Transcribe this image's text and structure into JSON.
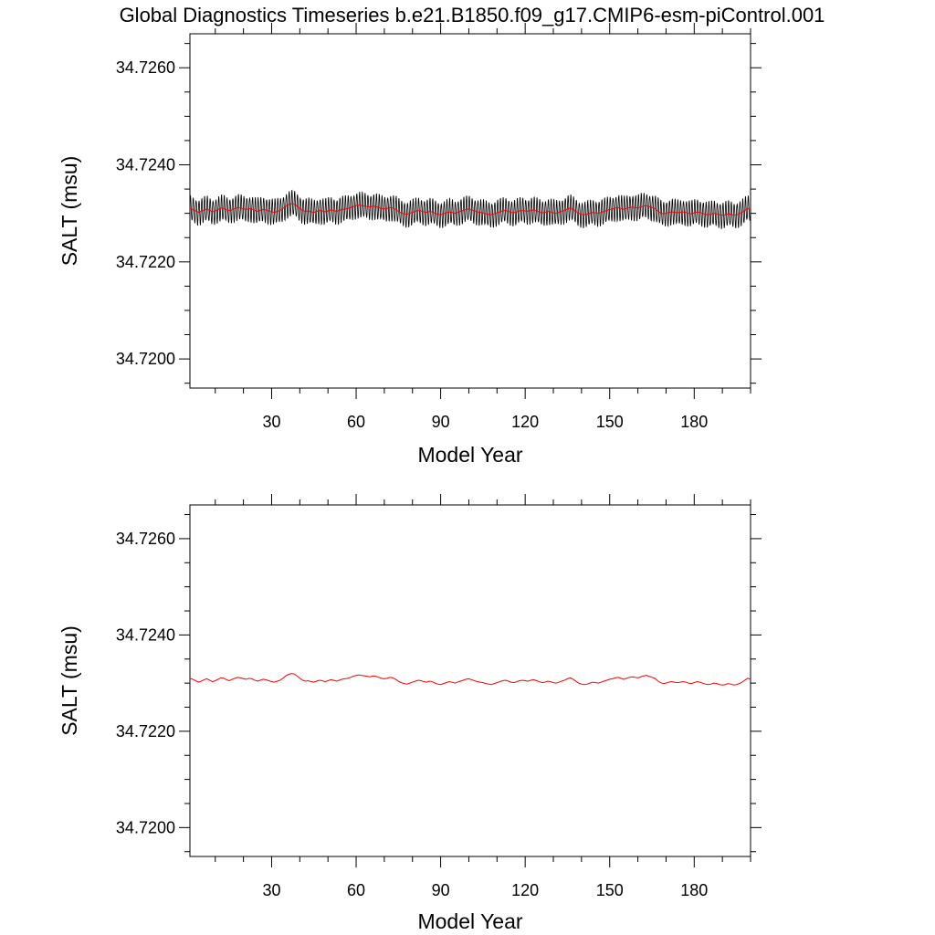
{
  "title": "Global Diagnostics Timeseries b.e21.B1850.f09_g17.CMIP6-esm-piControl.001",
  "colors": {
    "monthly_line": "#000000",
    "annual_line": "#ff0000",
    "frame": "#000000",
    "background": "#ffffff"
  },
  "chart_data": [
    {
      "type": "line",
      "title": "",
      "xlabel": "Model Year",
      "ylabel": "SALT (msu)",
      "xlim": [
        1,
        200
      ],
      "ylim": [
        34.7194,
        34.7267
      ],
      "x_ticks": [
        30,
        60,
        90,
        120,
        150,
        180
      ],
      "x_tick_labels": [
        "30",
        "60",
        "90",
        "120",
        "150",
        "180"
      ],
      "y_ticks": [
        34.72,
        34.722,
        34.724,
        34.726
      ],
      "y_tick_labels": [
        "34.7200",
        "34.7220",
        "34.7240",
        "34.7260"
      ],
      "grid": false,
      "series": [
        {
          "kind": "monthly",
          "color": "#000000",
          "note_values": "monthly values oscillate about the annual mean with a seasonal amplitude of about 0.00025 msu",
          "seasonal_amplitude": 0.00025
        },
        {
          "kind": "annual",
          "color": "#ff0000",
          "x_start": 1,
          "x_step": 1,
          "values": [
            34.7231,
            34.72308,
            34.72305,
            34.72302,
            34.72304,
            34.72307,
            34.72309,
            34.72306,
            34.72303,
            34.72305,
            34.72308,
            34.72311,
            34.7231,
            34.72307,
            34.72305,
            34.72308,
            34.7231,
            34.72312,
            34.72311,
            34.72309,
            34.72308,
            34.7231,
            34.72309,
            34.72306,
            34.72304,
            34.72306,
            34.72308,
            34.72307,
            34.72305,
            34.72303,
            34.72302,
            34.72304,
            34.72306,
            34.7231,
            34.72315,
            34.72318,
            34.7232,
            34.72319,
            34.72315,
            34.7231,
            34.72306,
            34.72304,
            34.72305,
            34.72303,
            34.72302,
            34.72304,
            34.72306,
            34.72305,
            34.72303,
            34.72305,
            34.72307,
            34.72306,
            34.72304,
            34.72306,
            34.72308,
            34.72309,
            34.7231,
            34.72312,
            34.72314,
            34.72316,
            34.72317,
            34.72316,
            34.72315,
            34.72314,
            34.72313,
            34.72315,
            34.72314,
            34.72312,
            34.7231,
            34.72309,
            34.7231,
            34.72312,
            34.72311,
            34.72308,
            34.72304,
            34.72301,
            34.72299,
            34.72298,
            34.723,
            34.72302,
            34.72304,
            34.72306,
            34.72305,
            34.72303,
            34.72302,
            34.72304,
            34.72303,
            34.723,
            34.72298,
            34.72297,
            34.72299,
            34.72301,
            34.72303,
            34.72302,
            34.723,
            34.72302,
            34.72304,
            34.72306,
            34.72308,
            34.72309,
            34.72307,
            34.72305,
            34.72303,
            34.72302,
            34.72301,
            34.72299,
            34.72298,
            34.72297,
            34.72299,
            34.72301,
            34.72303,
            34.72305,
            34.72306,
            34.72304,
            34.72302,
            34.72301,
            34.72303,
            34.72305,
            34.72306,
            34.72305,
            34.72304,
            34.72306,
            34.72307,
            34.72305,
            34.72303,
            34.72301,
            34.72302,
            34.72304,
            34.72303,
            34.72301,
            34.723,
            34.72302,
            34.72304,
            34.72306,
            34.72309,
            34.72311,
            34.72308,
            34.72304,
            34.723,
            34.72298,
            34.72297,
            34.72298,
            34.723,
            34.72302,
            34.72301,
            34.723,
            34.72302,
            34.72304,
            34.72306,
            34.72308,
            34.72309,
            34.72311,
            34.72312,
            34.7231,
            34.72308,
            34.7231,
            34.72312,
            34.72313,
            34.72312,
            34.72311,
            34.72313,
            34.72315,
            34.72316,
            34.72314,
            34.72312,
            34.7231,
            34.72305,
            34.72301,
            34.72299,
            34.723,
            34.72302,
            34.72303,
            34.72302,
            34.72301,
            34.72302,
            34.72303,
            34.72302,
            34.723,
            34.72299,
            34.72301,
            34.72303,
            34.72302,
            34.723,
            34.72298,
            34.72297,
            34.72298,
            34.723,
            34.72299,
            34.72297,
            34.72296,
            34.72297,
            34.72299,
            34.72298,
            34.72296,
            34.72297,
            34.72299,
            34.72302,
            34.72306,
            34.7231,
            34.72308
          ]
        }
      ]
    },
    {
      "type": "line",
      "title": "",
      "xlabel": "Model Year",
      "ylabel": "SALT (msu)",
      "xlim": [
        1,
        200
      ],
      "ylim": [
        34.7194,
        34.7267
      ],
      "x_ticks": [
        30,
        60,
        90,
        120,
        150,
        180
      ],
      "x_tick_labels": [
        "30",
        "60",
        "90",
        "120",
        "150",
        "180"
      ],
      "y_ticks": [
        34.72,
        34.722,
        34.724,
        34.726
      ],
      "y_tick_labels": [
        "34.7200",
        "34.7220",
        "34.7240",
        "34.7260"
      ],
      "grid": false,
      "series": [
        {
          "kind": "annual",
          "color": "#ff0000",
          "same_as": "panel 1 annual series"
        }
      ]
    }
  ]
}
